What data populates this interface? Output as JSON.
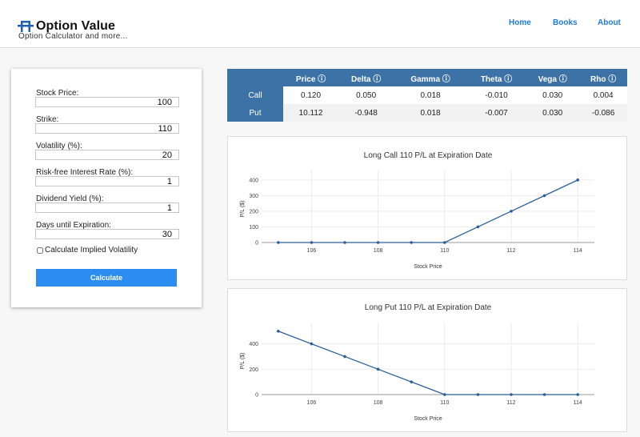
{
  "header": {
    "title": "Option Value",
    "subtitle": "Option Calculator and more...",
    "nav": [
      "Home",
      "Books",
      "About"
    ]
  },
  "form": {
    "fields": [
      {
        "label": "Stock Price:",
        "value": "100"
      },
      {
        "label": "Strike:",
        "value": "110"
      },
      {
        "label": "Volatility (%):",
        "value": "20"
      },
      {
        "label": "Risk-free Interest Rate (%):",
        "value": "1"
      },
      {
        "label": "Dividend Yield (%):",
        "value": "1"
      },
      {
        "label": "Days until Expiration:",
        "value": "30"
      }
    ],
    "implied_vol_label": "Calculate Implied Volatility",
    "calculate_label": "Calculate"
  },
  "greeks": {
    "headers": [
      "Price ⓘ",
      "Delta ⓘ",
      "Gamma ⓘ",
      "Theta ⓘ",
      "Vega ⓘ",
      "Rho ⓘ"
    ],
    "rows": [
      {
        "label": "Call",
        "values": [
          "0.120",
          "0.050",
          "0.018",
          "-0.010",
          "0.030",
          "0.004"
        ]
      },
      {
        "label": "Put",
        "values": [
          "10.112",
          "-0.948",
          "0.018",
          "-0.007",
          "0.030",
          "-0.086"
        ]
      }
    ]
  },
  "colors": {
    "accent": "#1e7ae0",
    "table_header": "#3d72a6",
    "button": "#2d8cf0",
    "line": "#2c5f97"
  },
  "chart_data": [
    {
      "type": "line",
      "title": "Long Call 110 P/L at Expiration Date",
      "xlabel": "Stock Price",
      "ylabel": "P/L ($)",
      "x": [
        105,
        106,
        107,
        108,
        109,
        110,
        111,
        112,
        113,
        114
      ],
      "y": [
        0,
        0,
        0,
        0,
        0,
        0,
        100,
        200,
        300,
        400
      ],
      "xticks": [
        106,
        108,
        110,
        112,
        114
      ],
      "yticks": [
        0,
        100,
        200,
        300,
        400
      ],
      "xlim": [
        104.5,
        114.5
      ],
      "ylim": [
        0,
        430
      ],
      "grid": true
    },
    {
      "type": "line",
      "title": "Long Put 110 P/L at Expiration Date",
      "xlabel": "Stock Price",
      "ylabel": "P/L ($)",
      "x": [
        105,
        106,
        107,
        108,
        109,
        110,
        111,
        112,
        113,
        114
      ],
      "y": [
        500,
        400,
        300,
        200,
        100,
        0,
        0,
        0,
        0,
        0
      ],
      "xticks": [
        106,
        108,
        110,
        112,
        114
      ],
      "yticks": [
        0,
        200,
        400
      ],
      "xlim": [
        104.5,
        114.5
      ],
      "ylim": [
        0,
        530
      ],
      "grid": true
    }
  ]
}
